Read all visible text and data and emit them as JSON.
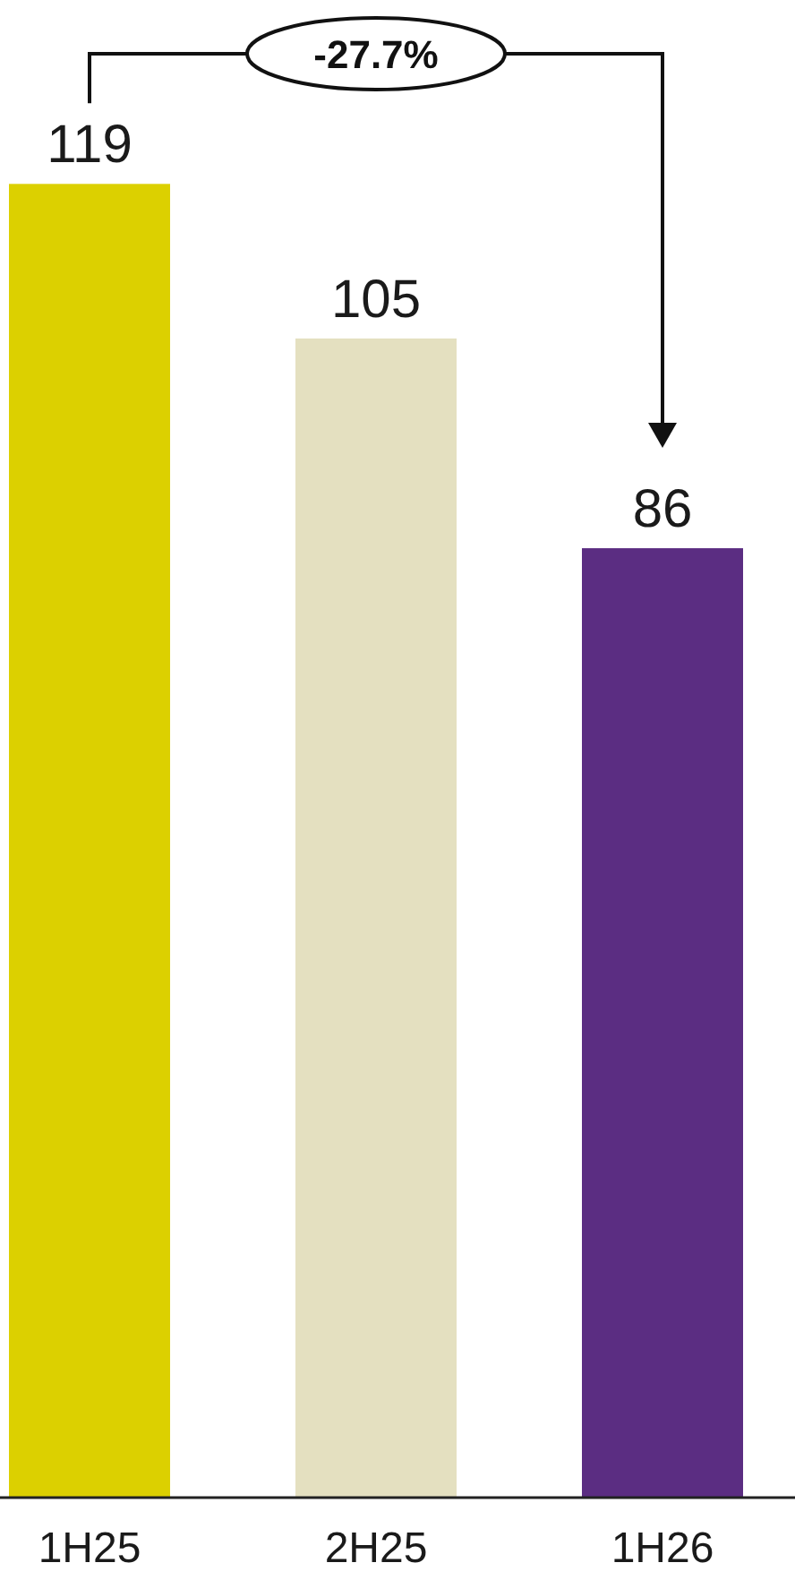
{
  "chart_data": {
    "type": "bar",
    "categories": [
      "1H25",
      "2H25",
      "1H26"
    ],
    "values": [
      119,
      105,
      86
    ],
    "colors": [
      "#dcd000",
      "#e4e0c0",
      "#5b2d82"
    ],
    "data_labels": true,
    "annotations": [
      "-27.7%"
    ]
  }
}
